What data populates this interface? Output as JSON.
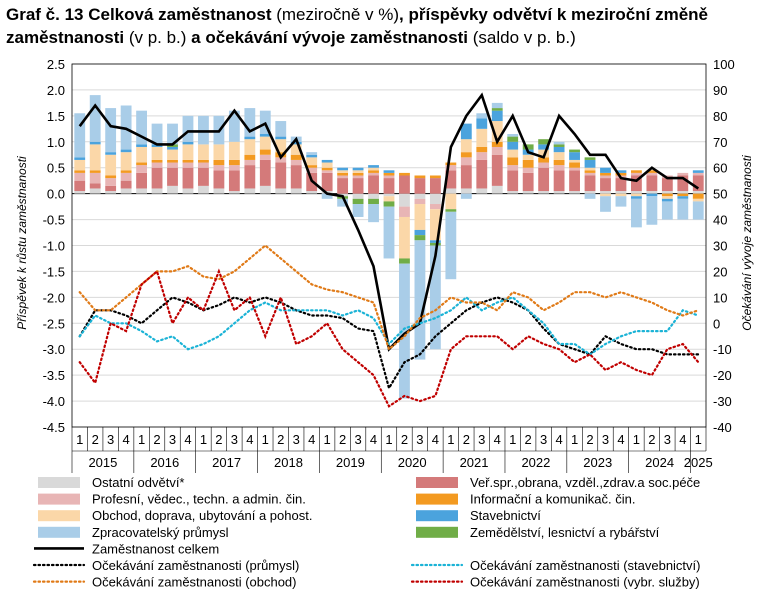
{
  "title": {
    "p1": "Graf č. 13 Celková zaměstnanost",
    "p2": " (meziročně v %)",
    "p3": ", příspěvky odvětví k meziroční změně zaměstnanosti",
    "p4": " (v p. b.)",
    "p5": " a očekávání vývoje zaměstnanosti",
    "p6": " (saldo v p. b.)"
  },
  "chart_data": {
    "type": "bar",
    "ylabel": "Příspěvek k růstu zaměstnanosti",
    "y2label": "Očekávání vývoje zaměstnanosti",
    "ylim": [
      -4.5,
      2.5
    ],
    "y2lim": [
      -40,
      100
    ],
    "yticks": [
      "2.5",
      "2.0",
      "1.5",
      "1.0",
      "0.5",
      "0.0",
      "-0.5",
      "-1.0",
      "-1.5",
      "-2.0",
      "-2.5",
      "-3.0",
      "-3.5",
      "-4.0",
      "-4.5"
    ],
    "y2ticks": [
      "100",
      "90",
      "80",
      "70",
      "60",
      "50",
      "40",
      "30",
      "20",
      "10",
      "0",
      "-10",
      "-20",
      "-30",
      "-40"
    ],
    "quarters": [
      "1",
      "2",
      "3",
      "4",
      "1",
      "2",
      "3",
      "4",
      "1",
      "2",
      "3",
      "4",
      "1",
      "2",
      "3",
      "4",
      "1",
      "2",
      "3",
      "4",
      "1",
      "2",
      "3",
      "4",
      "1",
      "2",
      "3",
      "4",
      "1",
      "2",
      "3",
      "4",
      "1",
      "2",
      "3",
      "4",
      "1",
      "2",
      "3",
      "4",
      "1"
    ],
    "years": [
      "2015",
      "2016",
      "2017",
      "2018",
      "2019",
      "2020",
      "2021",
      "2022",
      "2023",
      "2024",
      "2025"
    ],
    "grid": true,
    "legend_position": "bottom",
    "series": [
      {
        "name": "Ostatní odvětví*",
        "kind": "bar",
        "color": "#d9d9d9",
        "values": [
          0.05,
          0.1,
          0.05,
          0.1,
          0.1,
          0.1,
          0.15,
          0.1,
          0.15,
          0.1,
          0.05,
          0.1,
          0.15,
          0.1,
          0.1,
          0.05,
          0.05,
          -0.05,
          -0.1,
          -0.1,
          -0.05,
          -0.25,
          -0.1,
          -0.2,
          0.1,
          0.1,
          0.1,
          0.15,
          0.05,
          0.05,
          0.05,
          0.05,
          0.05,
          0.05,
          0.05,
          0.05,
          0.05,
          0.05,
          0.05,
          0.05,
          0.05
        ]
      },
      {
        "name": "Veř.spr.,obrana, vzděl.,zdrav.a soc.péče",
        "kind": "bar",
        "color": "#d47a7a",
        "values": [
          0.2,
          0.1,
          0.1,
          0.15,
          0.3,
          0.4,
          0.35,
          0.4,
          0.35,
          0.35,
          0.4,
          0.45,
          0.5,
          0.5,
          0.45,
          0.35,
          0.35,
          0.3,
          0.3,
          0.35,
          0.3,
          0.35,
          0.3,
          0.3,
          0.35,
          0.45,
          0.55,
          0.6,
          0.4,
          0.35,
          0.45,
          0.4,
          0.4,
          0.3,
          0.25,
          0.25,
          0.3,
          0.3,
          0.25,
          0.3,
          0.3
        ]
      },
      {
        "name": "Profesní, vědec., techn. a admin. čin.",
        "kind": "bar",
        "color": "#e8b5b5",
        "values": [
          0.15,
          0.2,
          0.15,
          0.15,
          0.15,
          0.1,
          0.1,
          0.1,
          0.1,
          0.1,
          0.1,
          0.1,
          0.1,
          0.1,
          0.1,
          0.1,
          0.05,
          0.05,
          0.05,
          0.05,
          0.05,
          -0.2,
          -0.1,
          -0.1,
          0.1,
          0.15,
          0.15,
          0.15,
          0.1,
          0.1,
          0.1,
          0.1,
          0.05,
          0.05,
          0.05,
          0.05,
          0.05,
          0.05,
          0.05,
          0.05,
          0.05
        ]
      },
      {
        "name": "Informační a komunikač. čin.",
        "kind": "bar",
        "color": "#f39a21",
        "values": [
          0.05,
          0.05,
          0.05,
          0.05,
          0.05,
          0.05,
          0.05,
          0.05,
          0.05,
          0.1,
          0.1,
          0.1,
          0.1,
          0.1,
          0.1,
          0.05,
          0.05,
          0.05,
          0.05,
          0.05,
          0.05,
          0.05,
          0.05,
          0.05,
          0.05,
          0.1,
          0.1,
          0.1,
          0.15,
          0.15,
          0.1,
          0.1,
          0.1,
          0.05,
          0.05,
          0.05,
          0.05,
          0.05,
          -0.05,
          -0.05,
          -0.1
        ]
      },
      {
        "name": "Obchod, doprava, ubytování a pohost.",
        "kind": "bar",
        "color": "#fbd7a8",
        "values": [
          0.2,
          0.5,
          0.4,
          0.35,
          0.3,
          0.25,
          0.2,
          0.3,
          0.3,
          0.3,
          0.35,
          0.3,
          0.25,
          0.25,
          0.2,
          0.15,
          0.1,
          0.05,
          0.05,
          0.05,
          -0.1,
          -0.8,
          -0.5,
          -0.6,
          -0.3,
          0.25,
          0.35,
          0.4,
          0.15,
          0.1,
          0.15,
          0.15,
          0.05,
          0.05,
          -0.05,
          -0.05,
          -0.05,
          0.0,
          -0.05,
          0.0,
          -0.05
        ]
      },
      {
        "name": "Stavebnictví",
        "kind": "bar",
        "color": "#4ba3dd",
        "values": [
          0.05,
          0.05,
          0.05,
          0.05,
          0.05,
          0.05,
          0.05,
          0.05,
          0.0,
          0.0,
          0.0,
          0.05,
          0.05,
          0.05,
          0.05,
          0.05,
          0.05,
          0.05,
          0.05,
          0.05,
          0.05,
          0.0,
          -0.1,
          -0.05,
          0.0,
          0.3,
          0.2,
          0.2,
          0.15,
          0.1,
          0.1,
          0.1,
          0.15,
          0.15,
          0.1,
          0.05,
          -0.05,
          -0.05,
          -0.05,
          -0.05,
          0.05
        ]
      },
      {
        "name": "Zemědělství, lesnictví a rybářství",
        "kind": "bar",
        "color": "#70ad47",
        "values": [
          0.0,
          0.0,
          0.0,
          0.0,
          0.0,
          0.0,
          0.05,
          0.0,
          0.0,
          0.0,
          0.0,
          0.0,
          0.0,
          0.0,
          0.0,
          0.0,
          0.0,
          -0.05,
          -0.1,
          -0.1,
          -0.1,
          -0.1,
          -0.1,
          -0.05,
          -0.05,
          0.0,
          0.0,
          0.05,
          0.1,
          0.1,
          0.1,
          0.05,
          0.05,
          0.05,
          0.0,
          0.0,
          0.0,
          0.0,
          0.0,
          0.0,
          0.0
        ]
      },
      {
        "name": "Zpracovatelský průmysl",
        "kind": "bar",
        "color": "#a9cde8",
        "values": [
          0.85,
          0.9,
          0.85,
          0.85,
          0.65,
          0.4,
          0.4,
          0.5,
          0.55,
          0.55,
          0.6,
          0.55,
          0.45,
          0.3,
          0.1,
          0.05,
          -0.1,
          -0.15,
          -0.25,
          -0.35,
          -1.0,
          -2.6,
          -2.3,
          -2.0,
          -1.3,
          -0.1,
          0.1,
          0.1,
          0.05,
          0.0,
          0.0,
          0.05,
          0.0,
          -0.1,
          -0.3,
          -0.2,
          -0.55,
          -0.55,
          -0.35,
          -0.4,
          -0.35
        ]
      },
      {
        "name": "Zaměstnanost celkem",
        "kind": "line",
        "color": "#000000",
        "values": [
          1.3,
          1.7,
          1.3,
          1.25,
          1.1,
          0.95,
          0.95,
          1.2,
          1.2,
          1.2,
          1.6,
          1.2,
          1.35,
          0.7,
          1.05,
          0.25,
          0.0,
          -0.05,
          -0.7,
          -1.4,
          -3.0,
          -2.7,
          -2.5,
          -1.2,
          0.9,
          1.5,
          1.9,
          1.0,
          1.5,
          0.8,
          0.7,
          1.5,
          1.15,
          0.75,
          0.75,
          0.3,
          0.25,
          0.5,
          0.3,
          0.3,
          0.1
        ]
      },
      {
        "name": "Očekávání zaměstnanosti (průmysl)",
        "kind": "dotted",
        "axis": "right",
        "color": "#000000",
        "values": [
          -5,
          5,
          5,
          3,
          0,
          5,
          10,
          8,
          5,
          7,
          10,
          8,
          10,
          8,
          5,
          3,
          3,
          2,
          -2,
          -3,
          -25,
          -15,
          -12,
          -5,
          0,
          5,
          8,
          10,
          8,
          5,
          -2,
          -8,
          -10,
          -12,
          -5,
          -8,
          -10,
          -10,
          -12,
          -12,
          -12
        ]
      },
      {
        "name": "Očekávání zaměstnanosti (stavebnictví)",
        "kind": "dotted",
        "axis": "right",
        "color": "#1bb3d6",
        "values": [
          -5,
          3,
          0,
          0,
          -3,
          -7,
          -5,
          -10,
          -8,
          -5,
          0,
          5,
          8,
          5,
          5,
          5,
          5,
          3,
          5,
          2,
          -8,
          -2,
          0,
          2,
          5,
          10,
          5,
          8,
          10,
          5,
          0,
          -8,
          -8,
          -12,
          -8,
          -5,
          -3,
          -3,
          -3,
          5,
          3
        ]
      },
      {
        "name": "Očekávání zaměstnanosti (obchod)",
        "kind": "dotted",
        "axis": "right",
        "color": "#e07a17",
        "values": [
          12,
          5,
          5,
          10,
          15,
          20,
          20,
          22,
          18,
          17,
          20,
          25,
          30,
          25,
          20,
          15,
          13,
          12,
          10,
          8,
          -10,
          -5,
          2,
          5,
          10,
          8,
          8,
          5,
          12,
          10,
          5,
          8,
          12,
          12,
          10,
          12,
          10,
          8,
          5,
          3,
          5
        ]
      },
      {
        "name": "Očekávání zaměstnanosti (vybr. služby)",
        "kind": "dotted",
        "axis": "right",
        "color": "#c00000",
        "values": [
          -15,
          -23,
          0,
          -3,
          15,
          20,
          0,
          10,
          5,
          20,
          5,
          10,
          -5,
          10,
          -8,
          -5,
          0,
          -10,
          -15,
          -20,
          -32,
          -28,
          -30,
          -28,
          -10,
          -5,
          -5,
          -5,
          -10,
          -5,
          -8,
          -10,
          -15,
          -12,
          -18,
          -15,
          -18,
          -20,
          -10,
          -8,
          -15
        ]
      }
    ]
  },
  "legend": [
    {
      "label": "Ostatní odvětví*",
      "kind": "box",
      "color": "#d9d9d9"
    },
    {
      "label": "Veř.spr.,obrana, vzděl.,zdrav.a soc.péče",
      "kind": "box",
      "color": "#d47a7a"
    },
    {
      "label": "Profesní, vědec., techn. a admin. čin.",
      "kind": "box",
      "color": "#e8b5b5"
    },
    {
      "label": "Informační a komunikač. čin.",
      "kind": "box",
      "color": "#f39a21"
    },
    {
      "label": "Obchod, doprava, ubytování a pohost.",
      "kind": "box",
      "color": "#fbd7a8"
    },
    {
      "label": "Stavebnictví",
      "kind": "box",
      "color": "#4ba3dd"
    },
    {
      "label": "Zpracovatelský průmysl",
      "kind": "box",
      "color": "#a9cde8"
    },
    {
      "label": "Zemědělství, lesnictví a rybářství",
      "kind": "box",
      "color": "#70ad47"
    },
    {
      "label": "Zaměstnanost celkem",
      "kind": "line",
      "color": "#000000"
    },
    {
      "label": "",
      "kind": "none",
      "color": ""
    },
    {
      "label": "Očekávání zaměstnanosti (průmysl)",
      "kind": "dot",
      "color": "#000000"
    },
    {
      "label": "Očekávání zaměstnanosti (stavebnictví)",
      "kind": "dot",
      "color": "#1bb3d6"
    },
    {
      "label": "Očekávání zaměstnanosti (obchod)",
      "kind": "dot",
      "color": "#e07a17"
    },
    {
      "label": "Očekávání zaměstnanosti (vybr. služby)",
      "kind": "dot",
      "color": "#c00000"
    }
  ]
}
